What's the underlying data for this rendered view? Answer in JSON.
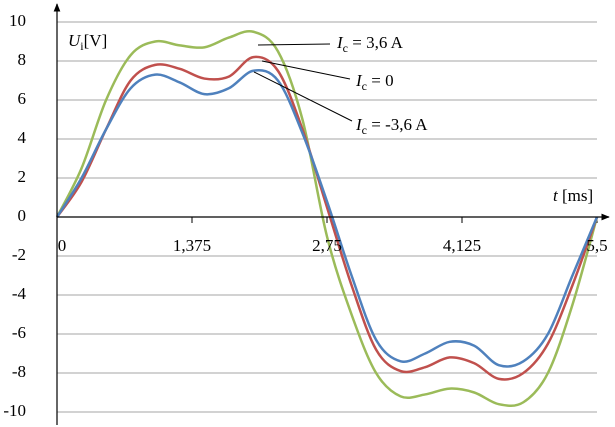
{
  "chart_data": {
    "type": "line",
    "x_label": {
      "symbol": "t",
      "unit": "[ms]"
    },
    "y_label": {
      "symbol": "U",
      "subscript": "i",
      "unit": "[V]"
    },
    "x": [
      0,
      0.25,
      0.5,
      0.75,
      1.0,
      1.25,
      1.5,
      1.75,
      2.0,
      2.25,
      2.5,
      2.75,
      3.0,
      3.25,
      3.5,
      3.75,
      4.0,
      4.25,
      4.5,
      4.75,
      5.0,
      5.25,
      5.5
    ],
    "series": [
      {
        "label": {
          "symbol": "I",
          "subscript": "c",
          "text": " = 3,6 A"
        },
        "color": "#9bbb59",
        "values": [
          0,
          2.5,
          6.0,
          8.3,
          9.0,
          8.8,
          8.7,
          9.2,
          9.5,
          8.5,
          5.0,
          -1.0,
          -5.0,
          -8.0,
          -9.2,
          -9.1,
          -8.8,
          -9.0,
          -9.6,
          -9.5,
          -8.0,
          -4.5,
          0
        ]
      },
      {
        "label": {
          "symbol": "I",
          "subscript": "c",
          "text": " = 0"
        },
        "color": "#c0504d",
        "values": [
          0,
          1.8,
          4.5,
          7.0,
          7.8,
          7.6,
          7.1,
          7.2,
          8.2,
          7.5,
          4.5,
          0.5,
          -3.5,
          -6.8,
          -7.9,
          -7.7,
          -7.2,
          -7.5,
          -8.3,
          -8.0,
          -6.5,
          -3.5,
          0
        ]
      },
      {
        "label": {
          "symbol": "I",
          "subscript": "c",
          "text": " = -3,6 A"
        },
        "color": "#4f81bd",
        "values": [
          0,
          2.0,
          4.5,
          6.6,
          7.3,
          6.9,
          6.3,
          6.6,
          7.5,
          7.0,
          4.3,
          0.8,
          -3.0,
          -6.3,
          -7.4,
          -7.0,
          -6.4,
          -6.6,
          -7.6,
          -7.4,
          -6.0,
          -3.0,
          0
        ]
      }
    ],
    "xlim": [
      0,
      5.5
    ],
    "xticks": [
      0,
      {
        "value": 1.375,
        "label": "1,375"
      },
      {
        "value": 2.75,
        "label": "2,75"
      },
      {
        "value": 4.125,
        "label": "4,125"
      },
      {
        "value": 5.5,
        "label": "5,5"
      }
    ],
    "ylim": [
      -10,
      10
    ],
    "yticks": [
      -10,
      -8,
      -6,
      -4,
      -2,
      0,
      2,
      4,
      6,
      8,
      10
    ],
    "grid": true
  }
}
